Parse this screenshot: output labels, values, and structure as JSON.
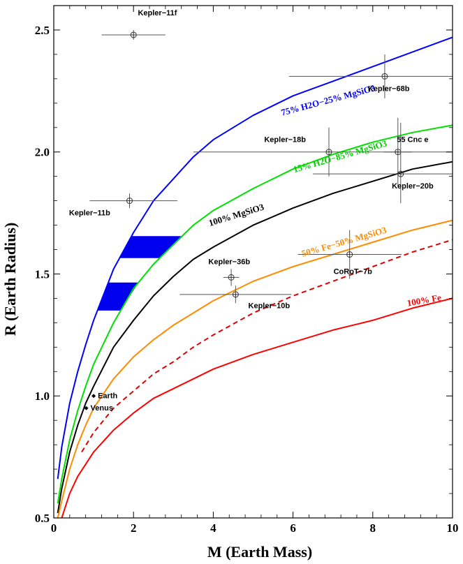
{
  "chart_data": {
    "type": "scatter",
    "xlabel": "M (Earth Mass)",
    "ylabel": "R (Earth Radius)",
    "xlim": [
      0,
      10
    ],
    "ylim": [
      0.5,
      2.6
    ],
    "x_ticks": [
      "0",
      "2",
      "4",
      "6",
      "8",
      "10"
    ],
    "y_ticks": [
      "0.5",
      "1.0",
      "1.5",
      "2.0",
      "2.5"
    ],
    "x_tick_values": [
      0,
      2,
      4,
      6,
      8,
      10
    ],
    "y_tick_values": [
      0.5,
      1.0,
      1.5,
      2.0,
      2.5
    ],
    "series": [
      {
        "name": "75% H2O−25% MgSiO3",
        "color": "#0000ff",
        "dashed": false,
        "points": [
          [
            0.1,
            0.66
          ],
          [
            0.2,
            0.79
          ],
          [
            0.4,
            0.97
          ],
          [
            0.6,
            1.1
          ],
          [
            0.8,
            1.21
          ],
          [
            1.0,
            1.31
          ],
          [
            1.5,
            1.52
          ],
          [
            2.0,
            1.67
          ],
          [
            2.5,
            1.8
          ],
          [
            3.0,
            1.89
          ],
          [
            3.5,
            1.98
          ],
          [
            4.0,
            2.05
          ],
          [
            5.0,
            2.15
          ],
          [
            6.0,
            2.23
          ],
          [
            7.0,
            2.29
          ],
          [
            8.0,
            2.35
          ],
          [
            9.0,
            2.41
          ],
          [
            10.0,
            2.47
          ]
        ]
      },
      {
        "name": "15% H2O−85% MgSiO3",
        "color": "#00e000",
        "dashed": false,
        "points": [
          [
            0.1,
            0.56
          ],
          [
            0.2,
            0.66
          ],
          [
            0.4,
            0.82
          ],
          [
            0.6,
            0.94
          ],
          [
            0.8,
            1.04
          ],
          [
            1.0,
            1.13
          ],
          [
            1.5,
            1.3
          ],
          [
            2.0,
            1.44
          ],
          [
            2.5,
            1.54
          ],
          [
            3.0,
            1.62
          ],
          [
            3.5,
            1.7
          ],
          [
            4.0,
            1.76
          ],
          [
            5.0,
            1.85
          ],
          [
            6.0,
            1.93
          ],
          [
            7.0,
            1.99
          ],
          [
            8.0,
            2.04
          ],
          [
            9.0,
            2.08
          ],
          [
            10.0,
            2.11
          ]
        ]
      },
      {
        "name": "100% MgSiO3",
        "color": "#000000",
        "dashed": false,
        "points": [
          [
            0.1,
            0.52
          ],
          [
            0.2,
            0.62
          ],
          [
            0.4,
            0.77
          ],
          [
            0.6,
            0.88
          ],
          [
            0.8,
            0.97
          ],
          [
            1.0,
            1.04
          ],
          [
            1.5,
            1.2
          ],
          [
            2.0,
            1.31
          ],
          [
            2.5,
            1.41
          ],
          [
            3.0,
            1.49
          ],
          [
            3.5,
            1.56
          ],
          [
            4.0,
            1.61
          ],
          [
            5.0,
            1.7
          ],
          [
            6.0,
            1.77
          ],
          [
            7.0,
            1.83
          ],
          [
            8.0,
            1.88
          ],
          [
            9.0,
            1.93
          ],
          [
            10.0,
            1.96
          ]
        ]
      },
      {
        "name": "50% Fe−50% MgSiO3",
        "color": "#ff8c00",
        "dashed": false,
        "points": [
          [
            0.1,
            0.5
          ],
          [
            0.2,
            0.57
          ],
          [
            0.4,
            0.7
          ],
          [
            0.6,
            0.8
          ],
          [
            0.8,
            0.88
          ],
          [
            1.0,
            0.95
          ],
          [
            1.5,
            1.07
          ],
          [
            2.0,
            1.16
          ],
          [
            2.5,
            1.23
          ],
          [
            3.0,
            1.29
          ],
          [
            3.5,
            1.34
          ],
          [
            4.0,
            1.39
          ],
          [
            5.0,
            1.47
          ],
          [
            6.0,
            1.53
          ],
          [
            7.0,
            1.58
          ],
          [
            8.0,
            1.63
          ],
          [
            9.0,
            1.68
          ],
          [
            10.0,
            1.72
          ]
        ]
      },
      {
        "name": "",
        "color": "#e00000",
        "dashed": true,
        "points": [
          [
            0.7,
            0.77
          ],
          [
            1.0,
            0.85
          ],
          [
            1.5,
            0.95
          ],
          [
            2.0,
            1.02
          ],
          [
            2.5,
            1.09
          ],
          [
            3.0,
            1.14
          ],
          [
            3.5,
            1.2
          ],
          [
            4.0,
            1.25
          ],
          [
            5.0,
            1.34
          ],
          [
            6.0,
            1.41
          ],
          [
            7.0,
            1.47
          ],
          [
            8.0,
            1.53
          ],
          [
            9.0,
            1.59
          ],
          [
            10.0,
            1.64
          ]
        ]
      },
      {
        "name": "100% Fe",
        "color": "#ff0000",
        "dashed": false,
        "points": [
          [
            0.1,
            0.46
          ],
          [
            0.2,
            0.5
          ],
          [
            0.4,
            0.6
          ],
          [
            0.6,
            0.67
          ],
          [
            0.8,
            0.72
          ],
          [
            1.0,
            0.77
          ],
          [
            1.5,
            0.86
          ],
          [
            2.0,
            0.93
          ],
          [
            2.5,
            0.99
          ],
          [
            3.0,
            1.03
          ],
          [
            3.5,
            1.07
          ],
          [
            4.0,
            1.11
          ],
          [
            5.0,
            1.17
          ],
          [
            6.0,
            1.22
          ],
          [
            7.0,
            1.27
          ],
          [
            8.0,
            1.31
          ],
          [
            9.0,
            1.36
          ],
          [
            10.0,
            1.4
          ]
        ]
      }
    ],
    "curve_labels": [
      {
        "text": "75% H2O−25% MgSiO3",
        "x": 6.9,
        "y": 2.2,
        "angle": -15,
        "color": "#0000ff"
      },
      {
        "text": "15% H2O−85% MgSiO3",
        "x": 7.2,
        "y": 1.97,
        "angle": -16,
        "color": "#00cc00"
      },
      {
        "text": "100% MgSiO3",
        "x": 4.6,
        "y": 1.73,
        "angle": -17,
        "color": "#000000"
      },
      {
        "text": "50% Fe−50% MgSiO3",
        "x": 7.3,
        "y": 1.62,
        "angle": -16,
        "color": "#ff8c00"
      },
      {
        "text": "100% Fe",
        "x": 9.3,
        "y": 1.38,
        "angle": -10,
        "color": "#ff0000"
      }
    ],
    "planets": [
      {
        "name": "Kepler−11f",
        "x": 2.0,
        "y": 2.48,
        "xerr": [
          0.8,
          0.8
        ],
        "yerr": [
          0.02,
          0.02
        ],
        "label_x": 2.6,
        "label_y": 2.56
      },
      {
        "name": "Kepler−68b",
        "x": 8.3,
        "y": 2.31,
        "xerr": [
          2.4,
          1.7
        ],
        "yerr": [
          0.09,
          0.09
        ],
        "label_x": 8.4,
        "label_y": 2.25
      },
      {
        "name": "Kepler−18b",
        "x": 6.9,
        "y": 2.0,
        "xerr": [
          3.4,
          3.4
        ],
        "yerr": [
          0.1,
          0.1
        ],
        "label_x": 5.8,
        "label_y": 2.04
      },
      {
        "name": "55 Cnc e",
        "x": 8.63,
        "y": 2.0,
        "xerr": [
          0.35,
          0.35
        ],
        "yerr": [
          0.14,
          0.14
        ],
        "label_x": 9.0,
        "label_y": 2.04
      },
      {
        "name": "Kepler−20b",
        "x": 8.7,
        "y": 1.91,
        "xerr": [
          2.2,
          2.2
        ],
        "yerr": [
          0.12,
          0.21
        ],
        "label_x": 9.0,
        "label_y": 1.85
      },
      {
        "name": "Kepler−11b",
        "x": 1.9,
        "y": 1.8,
        "xerr": [
          1.0,
          1.2
        ],
        "yerr": [
          0.03,
          0.03
        ],
        "label_x": 0.9,
        "label_y": 1.74
      },
      {
        "name": "Kepler−36b",
        "x": 4.45,
        "y": 1.486,
        "xerr": [
          0.2,
          0.2
        ],
        "yerr": [
          0.035,
          0.035
        ],
        "label_x": 4.4,
        "label_y": 1.54
      },
      {
        "name": "Kepler−10b",
        "x": 4.56,
        "y": 1.416,
        "xerr": [
          1.4,
          1.4
        ],
        "yerr": [
          0.036,
          0.036
        ],
        "label_x": 5.4,
        "label_y": 1.36
      },
      {
        "name": "CoRoT−7b",
        "x": 7.42,
        "y": 1.58,
        "xerr": [
          1.3,
          1.3
        ],
        "yerr": [
          0.1,
          0.1
        ],
        "label_x": 7.5,
        "label_y": 1.5
      }
    ],
    "solar_planets": [
      {
        "name": "Earth",
        "x": 1.0,
        "y": 1.0
      },
      {
        "name": "Venus",
        "x": 0.815,
        "y": 0.95
      }
    ],
    "bands": [
      {
        "y0": 1.565,
        "y1": 1.655,
        "color": "#0000ee"
      },
      {
        "y0": 1.35,
        "y1": 1.465,
        "color": "#0000ee"
      }
    ]
  }
}
